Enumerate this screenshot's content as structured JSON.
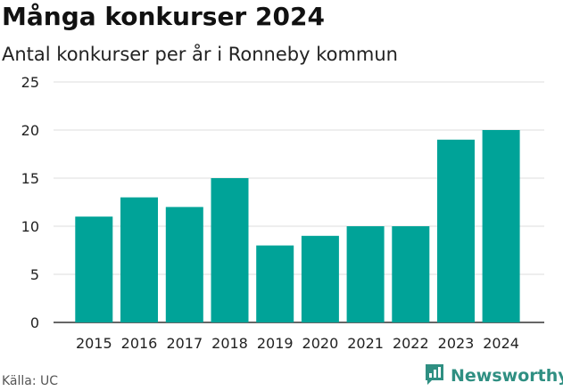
{
  "chart_data": {
    "type": "bar",
    "title": "Många konkurser 2024",
    "subtitle": "Antal konkurser per år i Ronneby kommun",
    "categories": [
      "2015",
      "2016",
      "2017",
      "2018",
      "2019",
      "2020",
      "2021",
      "2022",
      "2023",
      "2024"
    ],
    "values": [
      11,
      13,
      12,
      15,
      8,
      9,
      10,
      10,
      19,
      20
    ],
    "ylim": [
      0,
      25
    ],
    "yticks": [
      0,
      5,
      10,
      15,
      20,
      25
    ],
    "grid": true,
    "xlabel": "",
    "ylabel": "",
    "bar_color": "#00a398"
  },
  "footer": {
    "source": "Källa: UC",
    "brand": "Newsworthy",
    "brand_color": "#2f8f82",
    "brand_icon": "newsworthy-logo-icon"
  }
}
